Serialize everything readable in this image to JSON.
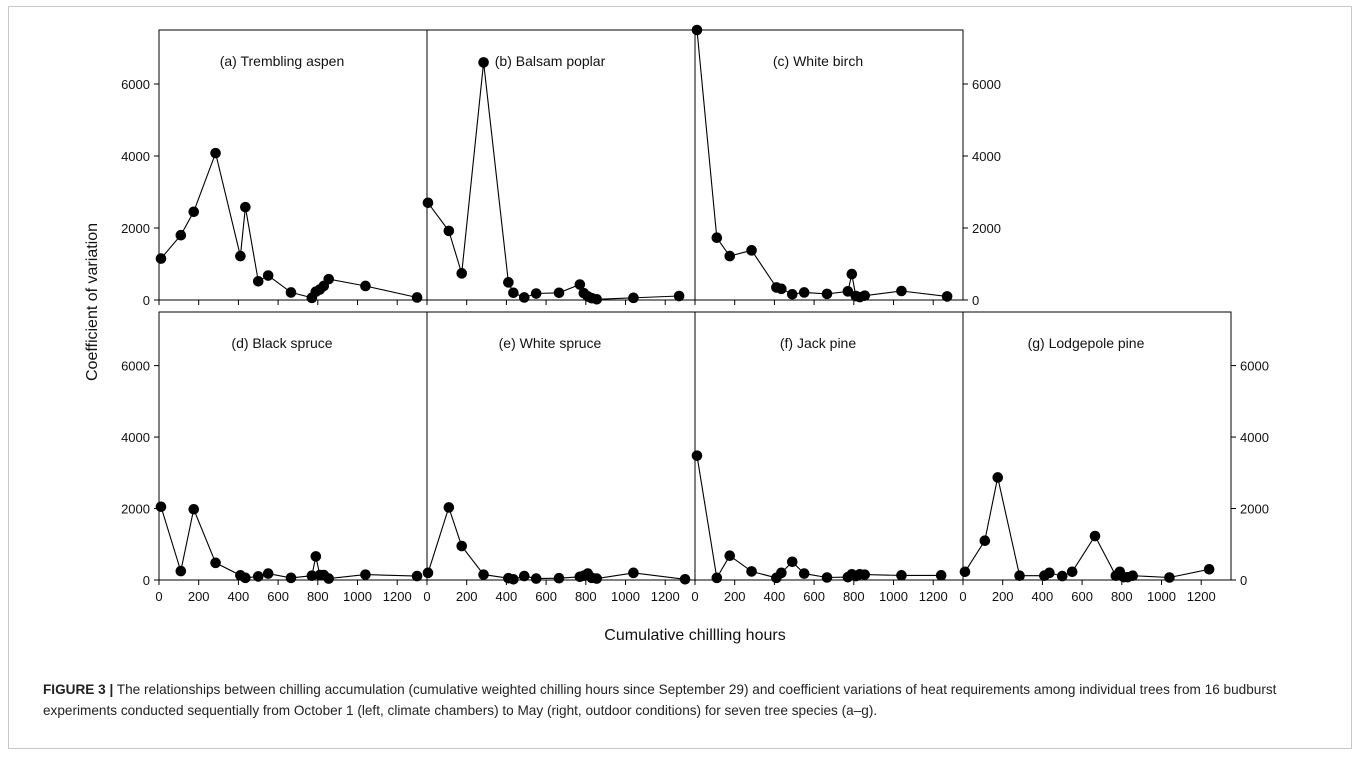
{
  "figure": {
    "y_axis_label": "Coefficient of variation",
    "x_axis_label": "Cumulative chillling hours",
    "caption_label": "FIGURE 3 |",
    "caption_text": " The relationships between chilling accumulation (cumulative weighted chilling hours since September 29) and coefficient variations of heat requirements among individual trees from 16 budburst experiments conducted sequentially from October 1 (left, climate chambers) to May (right, outdoor conditions) for seven tree species (a–g)."
  },
  "chart_data": [
    {
      "type": "line",
      "title": "(a) Trembling aspen",
      "xlim": [
        0,
        1350
      ],
      "ylim": [
        0,
        7500
      ],
      "x_ticks": [
        "0",
        "200",
        "400",
        "600",
        "800",
        "1000",
        "1200"
      ],
      "y_ticks": [
        "0",
        "2000",
        "4000",
        "6000"
      ],
      "x": [
        10,
        110,
        175,
        285,
        410,
        435,
        500,
        550,
        665,
        770,
        790,
        810,
        830,
        855,
        1040,
        1300
      ],
      "y": [
        1150,
        1800,
        2450,
        4080,
        1220,
        2580,
        520,
        680,
        210,
        60,
        230,
        290,
        390,
        580,
        390,
        70
      ],
      "marker": "circle",
      "color": "#000000",
      "grid": false
    },
    {
      "type": "line",
      "title": "(b) Balsam poplar",
      "xlim": [
        0,
        1350
      ],
      "ylim": [
        0,
        7500
      ],
      "x_ticks": [
        "0",
        "200",
        "400",
        "600",
        "800",
        "1000",
        "1200"
      ],
      "y_ticks": [
        "0",
        "2000",
        "4000",
        "6000"
      ],
      "x": [
        5,
        110,
        175,
        285,
        410,
        435,
        490,
        550,
        665,
        770,
        790,
        810,
        830,
        855,
        1040,
        1270
      ],
      "y": [
        2700,
        1920,
        740,
        6600,
        490,
        200,
        70,
        180,
        200,
        430,
        190,
        100,
        50,
        20,
        60,
        110
      ],
      "marker": "circle",
      "color": "#000000",
      "grid": false
    },
    {
      "type": "line",
      "title": "(c) White birch",
      "xlim": [
        0,
        1350
      ],
      "ylim": [
        0,
        7500
      ],
      "x_ticks": [
        "0",
        "200",
        "400",
        "600",
        "800",
        "1000",
        "1200"
      ],
      "y_ticks": [
        "0",
        "2000",
        "4000",
        "6000"
      ],
      "x": [
        10,
        110,
        175,
        285,
        410,
        435,
        490,
        550,
        665,
        770,
        790,
        810,
        830,
        855,
        1040,
        1270
      ],
      "y": [
        7500,
        1730,
        1220,
        1380,
        350,
        310,
        160,
        210,
        170,
        240,
        720,
        110,
        80,
        120,
        250,
        100
      ],
      "marker": "circle",
      "color": "#000000",
      "grid": false
    },
    {
      "type": "line",
      "title": "(d) Black spruce",
      "xlim": [
        0,
        1350
      ],
      "ylim": [
        0,
        7500
      ],
      "x_ticks": [
        "0",
        "200",
        "400",
        "600",
        "800",
        "1000",
        "1200"
      ],
      "y_ticks": [
        "0",
        "2000",
        "4000",
        "6000"
      ],
      "x": [
        10,
        110,
        175,
        285,
        410,
        435,
        500,
        550,
        665,
        770,
        790,
        810,
        830,
        855,
        1040,
        1300
      ],
      "y": [
        2050,
        250,
        1980,
        480,
        130,
        60,
        100,
        180,
        60,
        120,
        660,
        140,
        140,
        40,
        150,
        110
      ],
      "marker": "circle",
      "color": "#000000",
      "grid": false
    },
    {
      "type": "line",
      "title": "(e) White spruce",
      "xlim": [
        0,
        1350
      ],
      "ylim": [
        0,
        7500
      ],
      "x_ticks": [
        "0",
        "200",
        "400",
        "600",
        "800",
        "1000",
        "1200"
      ],
      "y_ticks": [
        "0",
        "2000",
        "4000",
        "6000"
      ],
      "x": [
        5,
        110,
        175,
        285,
        410,
        435,
        490,
        550,
        665,
        770,
        790,
        810,
        830,
        855,
        1040,
        1300
      ],
      "y": [
        200,
        2030,
        950,
        150,
        50,
        20,
        110,
        40,
        50,
        90,
        120,
        180,
        60,
        40,
        200,
        20
      ],
      "marker": "circle",
      "color": "#000000",
      "grid": false
    },
    {
      "type": "line",
      "title": "(f) Jack pine",
      "xlim": [
        0,
        1350
      ],
      "ylim": [
        0,
        7500
      ],
      "x_ticks": [
        "0",
        "200",
        "400",
        "600",
        "800",
        "1000",
        "1200"
      ],
      "y_ticks": [
        "0",
        "2000",
        "4000",
        "6000"
      ],
      "x": [
        10,
        110,
        175,
        285,
        410,
        435,
        490,
        550,
        665,
        770,
        790,
        810,
        830,
        855,
        1040,
        1240
      ],
      "y": [
        3480,
        60,
        680,
        240,
        60,
        200,
        510,
        180,
        70,
        80,
        160,
        110,
        160,
        150,
        130,
        130
      ],
      "marker": "circle",
      "color": "#000000",
      "grid": false
    },
    {
      "type": "line",
      "title": "(g) Lodgepole pine",
      "xlim": [
        0,
        1350
      ],
      "ylim": [
        0,
        7500
      ],
      "x_ticks": [
        "0",
        "200",
        "400",
        "600",
        "800",
        "1000",
        "1200"
      ],
      "y_ticks": [
        "0",
        "2000",
        "4000",
        "6000"
      ],
      "x": [
        10,
        110,
        175,
        285,
        410,
        435,
        500,
        550,
        665,
        770,
        790,
        810,
        830,
        855,
        1040,
        1240
      ],
      "y": [
        230,
        1100,
        2870,
        120,
        120,
        200,
        110,
        230,
        1230,
        120,
        230,
        80,
        80,
        120,
        70,
        300
      ],
      "marker": "circle",
      "color": "#000000",
      "grid": false
    }
  ]
}
